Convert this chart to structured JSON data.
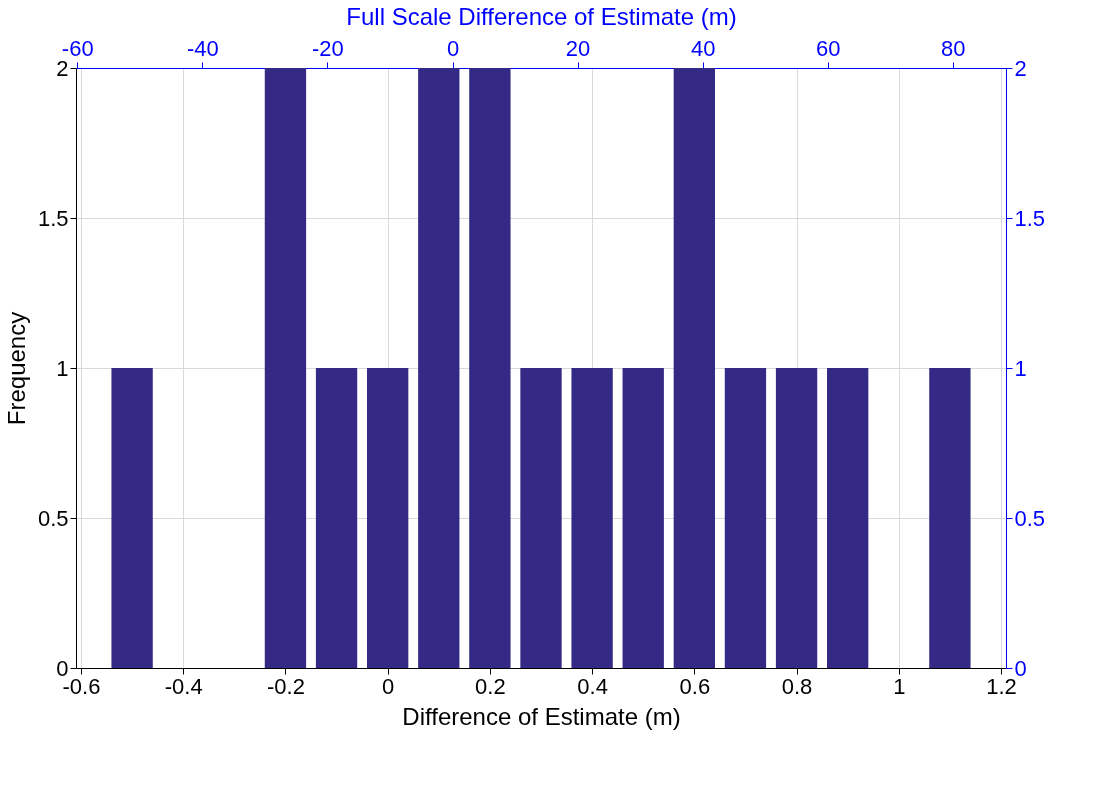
{
  "chart_data": {
    "type": "histogram",
    "bins": [
      -0.55,
      -0.45,
      -0.35,
      -0.25,
      -0.15,
      -0.05,
      0.05,
      0.15,
      0.25,
      0.35,
      0.45,
      0.55,
      0.65,
      0.75,
      0.85,
      0.95,
      1.05,
      1.15
    ],
    "values": [
      1,
      0,
      0,
      2,
      1,
      1,
      2,
      2,
      1,
      1,
      1,
      2,
      1,
      1,
      1,
      0,
      1
    ],
    "color": "#342a85",
    "xlabel": "Difference of Estimate (m)",
    "ylabel": "Frequency",
    "x2label": "Full Scale Difference of Estimate (m)",
    "xlim": [
      -0.6,
      1.2
    ],
    "xticks": [
      -0.6,
      -0.4,
      -0.2,
      0,
      0.2,
      0.4,
      0.6,
      0.8,
      1,
      1.2
    ],
    "ylim": [
      0,
      2
    ],
    "yticks": [
      0,
      0.5,
      1,
      1.5,
      2
    ],
    "x2lim": [
      -60.2,
      88.5
    ],
    "x2ticks": [
      -60,
      -40,
      -20,
      0,
      20,
      40,
      60,
      80
    ],
    "y2lim": [
      0,
      2
    ],
    "y2ticks": [
      0,
      0.5,
      1,
      1.5,
      2
    ],
    "grid": true
  }
}
